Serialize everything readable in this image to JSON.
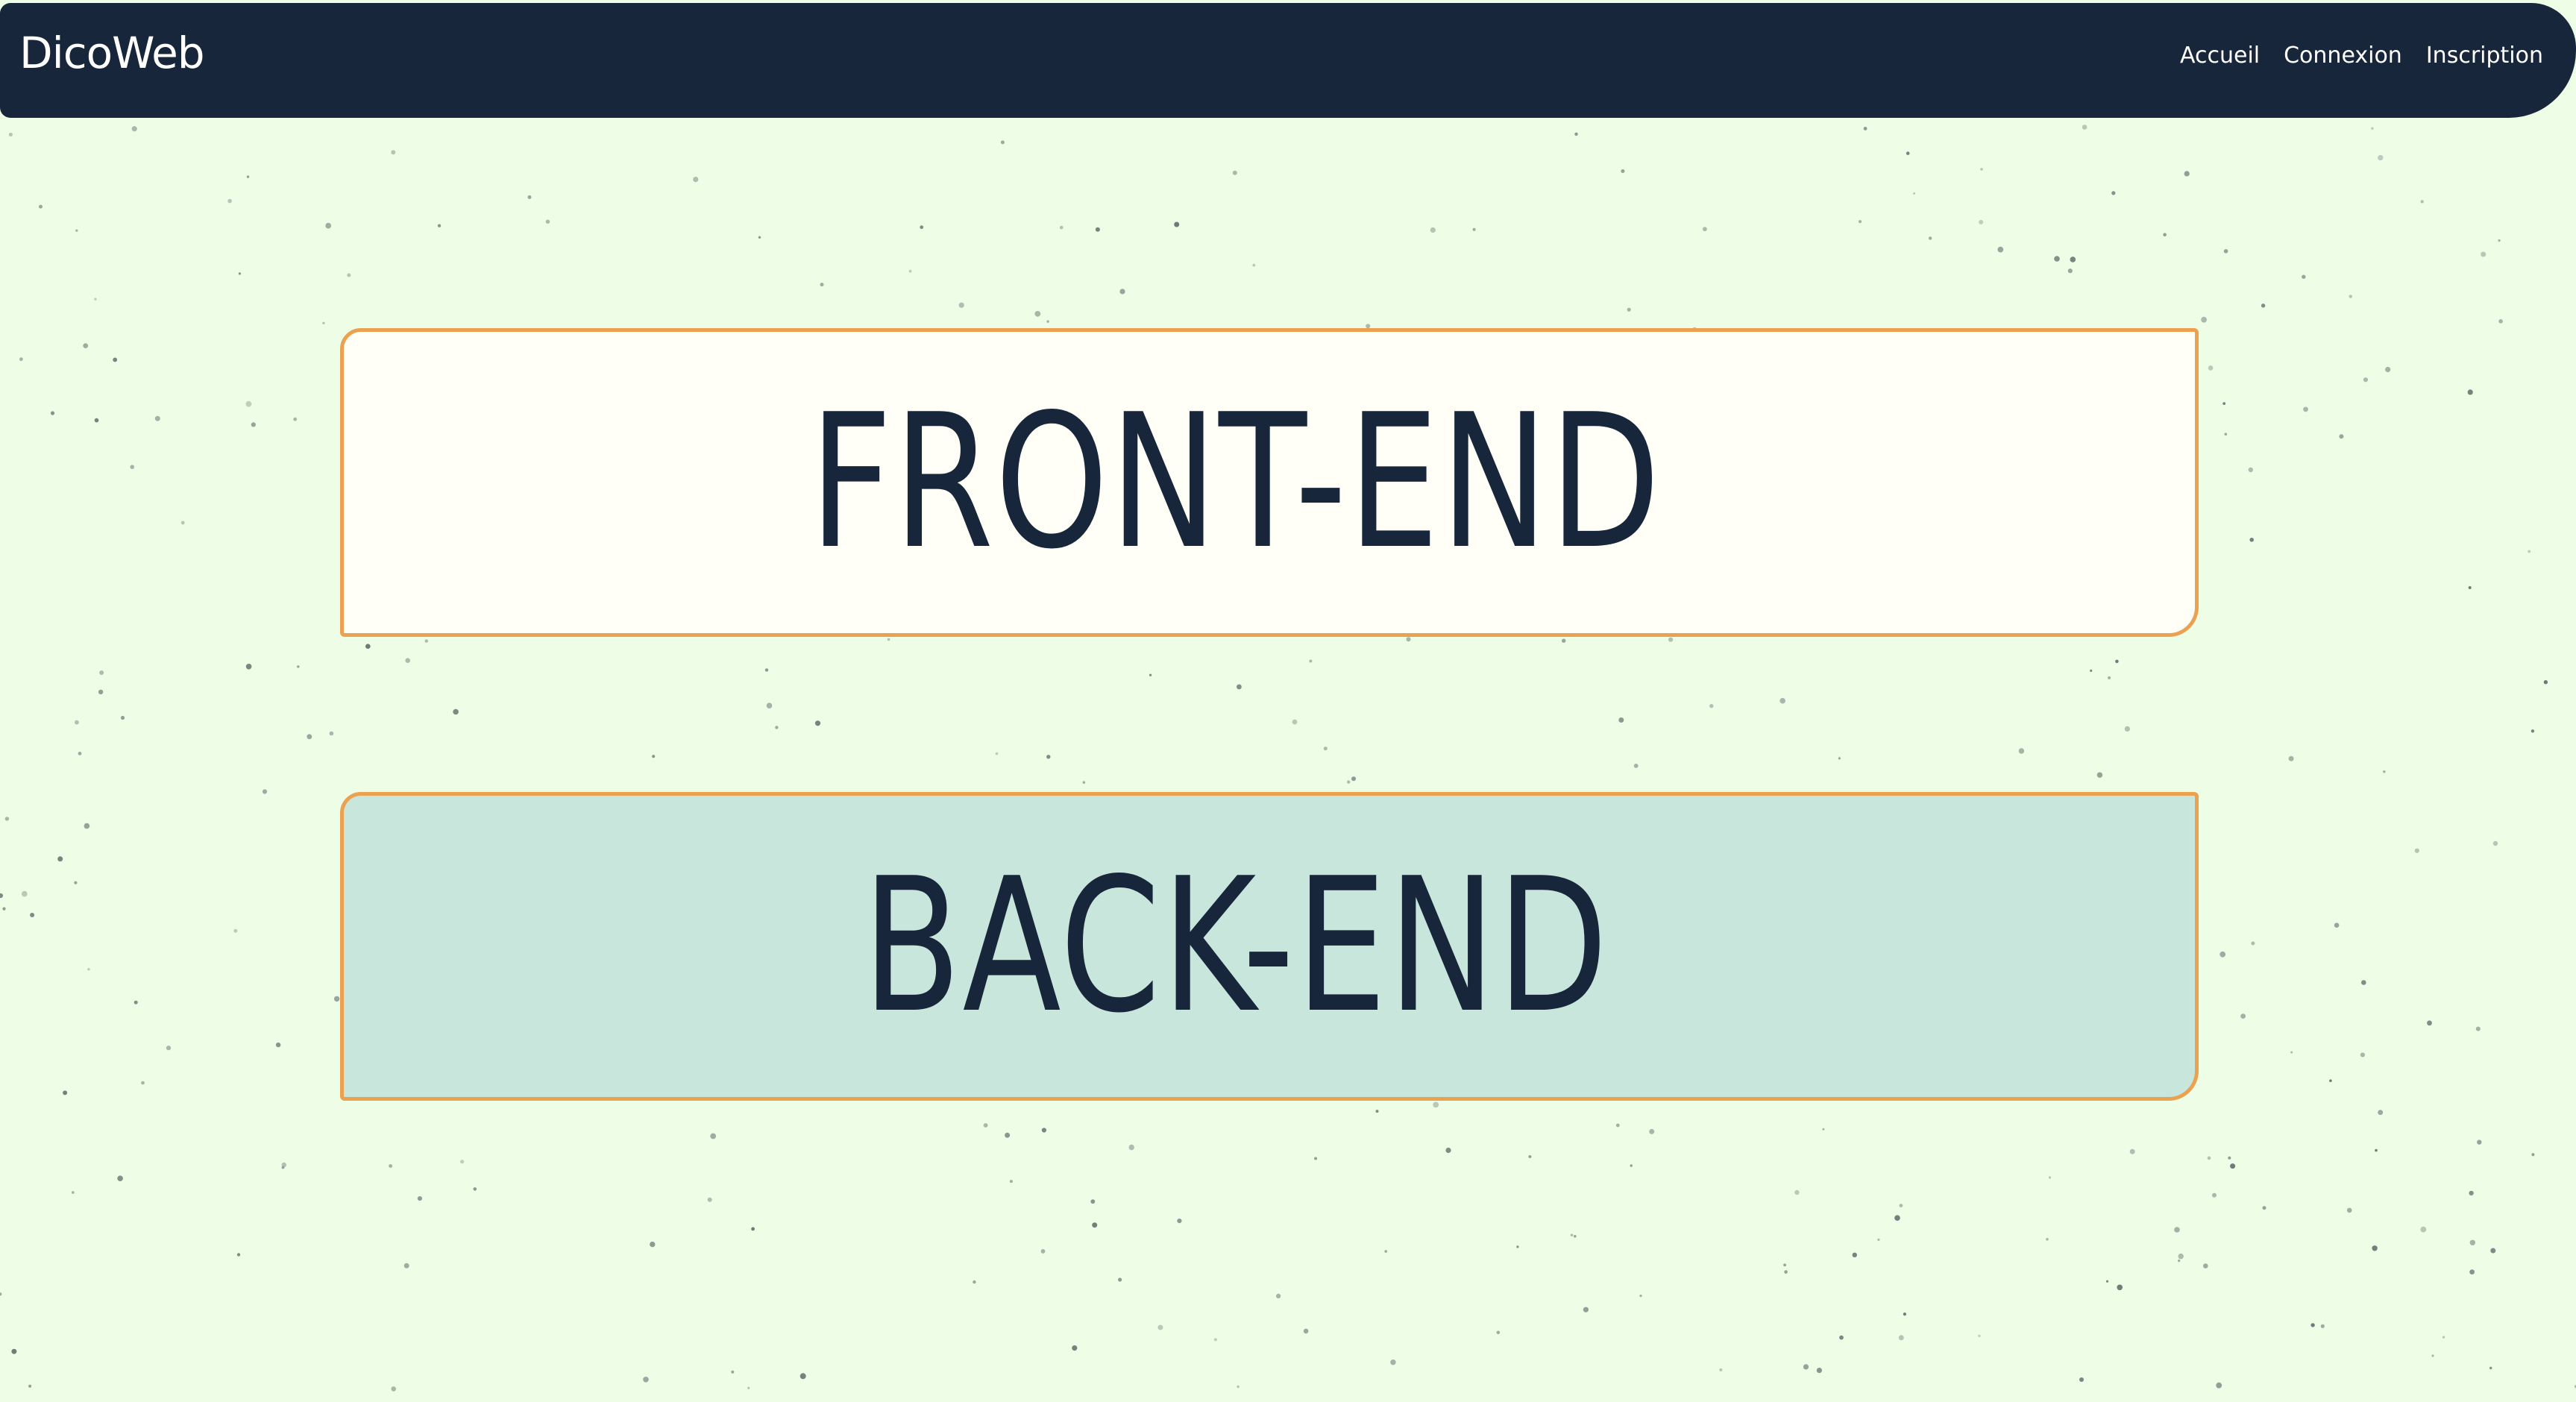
{
  "navbar": {
    "brand": "DicoWeb",
    "links": [
      {
        "label": "Accueil"
      },
      {
        "label": "Connexion"
      },
      {
        "label": "Inscription"
      }
    ]
  },
  "main": {
    "sections": [
      {
        "label": "FRONT-END"
      },
      {
        "label": "BACK-END"
      }
    ]
  },
  "colors": {
    "navbar_bg": "#17263a",
    "page_bg": "#eefde6",
    "card_border": "#eba14f",
    "front_card_bg": "#fffff7",
    "back_card_bg": "#c8e6db",
    "text_dark": "#17263a"
  }
}
